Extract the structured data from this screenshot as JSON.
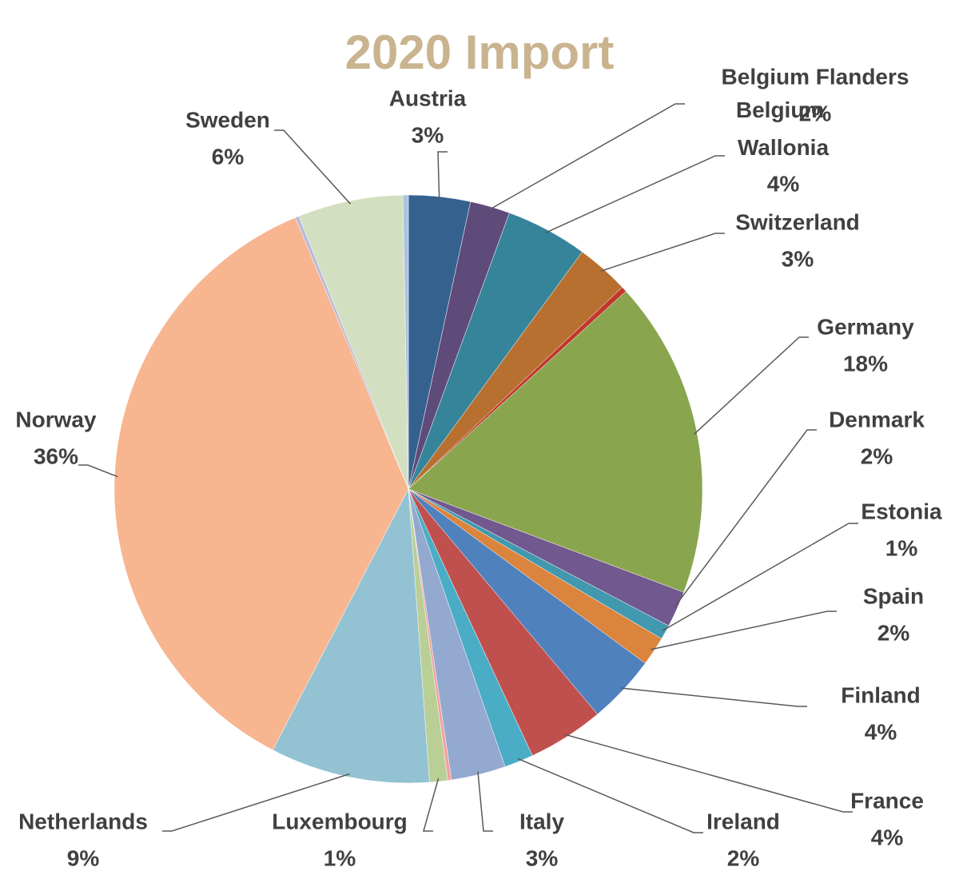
{
  "chart_data": {
    "type": "pie",
    "title": "2020 Import",
    "categories": [
      "Austria",
      "Belgium Flanders",
      "Belgium Wallonia",
      "Switzerland",
      null,
      "Germany",
      "Denmark",
      "Estonia",
      "Spain",
      "Finland",
      "France",
      "Ireland",
      "Italy",
      null,
      "Luxembourg",
      "Netherlands",
      "Norway",
      null,
      "Sweden",
      null
    ],
    "values": [
      3.4,
      2.2,
      4.5,
      2.9,
      0.3,
      17.5,
      2.0,
      0.8,
      1.6,
      3.8,
      4.2,
      1.6,
      3.0,
      0.2,
      1.0,
      8.8,
      36.2,
      0.2,
      5.8,
      0.3
    ],
    "value_labels": [
      "3%",
      "2%",
      "4%",
      "3%",
      null,
      "18%",
      "2%",
      "1%",
      "2%",
      "4%",
      "4%",
      "2%",
      "3%",
      null,
      "1%",
      "9%",
      "36%",
      null,
      "6%",
      null
    ],
    "colors": [
      "#35618f",
      "#5f4b7a",
      "#35849a",
      "#b7702f",
      "#c0392b",
      "#89a54e",
      "#71588f",
      "#4198af",
      "#db843d",
      "#4f81bd",
      "#c0504d",
      "#4bacc6",
      "#93a9cf",
      "#f2a0a0",
      "#b9cf96",
      "#93c2d3",
      "#f7b590",
      "#b9b9d9",
      "#d3dfc1",
      "#a9c4e0"
    ]
  }
}
